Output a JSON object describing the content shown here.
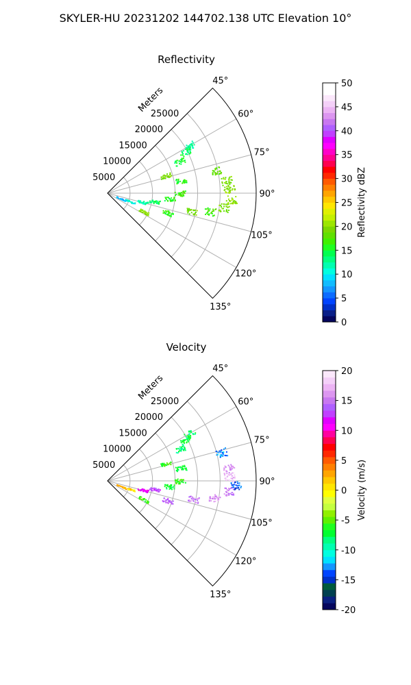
{
  "suptitle": "SKYLER-HU  20231202  144702.138 UTC Elevation 10°",
  "chart_data": [
    {
      "type": "heatmap",
      "title": "Reflectivity",
      "radial_axis_label": "Meters",
      "radial_ticks": [
        5000,
        10000,
        15000,
        20000,
        25000
      ],
      "rlim": [
        0,
        33000
      ],
      "theta_ticks_deg": [
        45,
        60,
        75,
        90,
        105,
        120,
        135
      ],
      "theta_range_deg": [
        45,
        135
      ],
      "grid": true,
      "colorbar": {
        "label": "Reflectivity dBZ",
        "range": [
          0,
          50
        ],
        "ticks": [
          0,
          5,
          10,
          15,
          20,
          25,
          30,
          35,
          40,
          45,
          50
        ],
        "colors": [
          "#05065d",
          "#0a1f88",
          "#0030c8",
          "#0044ff",
          "#0c6cff",
          "#1496ff",
          "#12bcff",
          "#00e1ff",
          "#00ffe0",
          "#00ffb0",
          "#00ff80",
          "#00ff50",
          "#20ff20",
          "#40f000",
          "#60e000",
          "#7cd800",
          "#9ce600",
          "#c4f000",
          "#e0f000",
          "#ffe600",
          "#ffc800",
          "#ffa500",
          "#ff8000",
          "#ff5a00",
          "#ff2800",
          "#ff0000",
          "#ff0050",
          "#ff0090",
          "#ff00c8",
          "#ff00ff",
          "#e000ff",
          "#c040ff",
          "#b060ff",
          "#c878f0",
          "#dc96f0",
          "#ecb4f4",
          "#f4d0f8",
          "#fbe8fb",
          "#ffffff",
          "#ffffff"
        ],
        "legend_placement": "right"
      },
      "echo_clusters": [
        {
          "az": 60,
          "range_m": 21000,
          "value": 12
        },
        {
          "az": 62,
          "range_m": 19500,
          "value": 14
        },
        {
          "az": 66,
          "range_m": 17500,
          "value": 15
        },
        {
          "az": 73,
          "range_m": 13500,
          "value": 19
        },
        {
          "az": 80,
          "range_m": 16500,
          "value": 16
        },
        {
          "az": 90,
          "range_m": 16000,
          "value": 17
        },
        {
          "az": 95,
          "range_m": 13800,
          "value": 16
        },
        {
          "az": 100,
          "range_m": 10500,
          "value": 14
        },
        {
          "az": 104,
          "range_m": 8000,
          "value": 12
        },
        {
          "az": 110,
          "range_m": 5200,
          "value": 11
        },
        {
          "az": 112,
          "range_m": 3200,
          "value": 8
        },
        {
          "az": 117,
          "range_m": 9000,
          "value": 20
        },
        {
          "az": 84,
          "range_m": 26500,
          "value": 19
        },
        {
          "az": 88,
          "range_m": 27000,
          "value": 20
        },
        {
          "az": 93,
          "range_m": 27500,
          "value": 20
        },
        {
          "az": 97,
          "range_m": 26000,
          "value": 19
        },
        {
          "az": 100,
          "range_m": 23000,
          "value": 17
        },
        {
          "az": 102,
          "range_m": 19000,
          "value": 19
        },
        {
          "az": 108,
          "range_m": 14000,
          "value": 16
        },
        {
          "az": 78,
          "range_m": 24500,
          "value": 18
        }
      ]
    },
    {
      "type": "heatmap",
      "title": "Velocity",
      "radial_axis_label": "Meters",
      "radial_ticks": [
        5000,
        10000,
        15000,
        20000,
        25000
      ],
      "rlim": [
        0,
        33000
      ],
      "theta_ticks_deg": [
        45,
        60,
        75,
        90,
        105,
        120,
        135
      ],
      "theta_range_deg": [
        45,
        135
      ],
      "grid": true,
      "colorbar": {
        "label": "Velocity (m/s)",
        "range": [
          -20,
          20
        ],
        "ticks": [
          -20,
          -15,
          -10,
          -5,
          0,
          5,
          10,
          15,
          20
        ],
        "colors": [
          "#05065d",
          "#0a2080",
          "#004050",
          "#005a3c",
          "#0030c8",
          "#0044ff",
          "#1496ff",
          "#00e1ff",
          "#00ffe0",
          "#00ffb0",
          "#00ff80",
          "#00ff30",
          "#20ff20",
          "#60f000",
          "#90f000",
          "#c4ff40",
          "#e0ff40",
          "#ffff00",
          "#ffe600",
          "#ffc800",
          "#ffa500",
          "#ff8000",
          "#ff5a00",
          "#ff2800",
          "#ff0000",
          "#ff0050",
          "#ff00a0",
          "#ff00ff",
          "#e000ff",
          "#c040ff",
          "#b060ff",
          "#c878f0",
          "#dc96f0",
          "#ecb4f4",
          "#f4d0f8",
          "#fbe8fb"
        ],
        "legend_placement": "right"
      },
      "echo_clusters": [
        {
          "az": 60,
          "range_m": 21000,
          "value": -8
        },
        {
          "az": 62,
          "range_m": 19500,
          "value": -7
        },
        {
          "az": 66,
          "range_m": 17500,
          "value": -8
        },
        {
          "az": 73,
          "range_m": 13500,
          "value": -6
        },
        {
          "az": 80,
          "range_m": 16500,
          "value": -7
        },
        {
          "az": 90,
          "range_m": 16000,
          "value": -6
        },
        {
          "az": 95,
          "range_m": 13800,
          "value": -7
        },
        {
          "az": 100,
          "range_m": 10500,
          "value": 13
        },
        {
          "az": 104,
          "range_m": 8000,
          "value": 11
        },
        {
          "az": 110,
          "range_m": 5200,
          "value": 1
        },
        {
          "az": 112,
          "range_m": 3200,
          "value": 3
        },
        {
          "az": 117,
          "range_m": 9000,
          "value": -6
        },
        {
          "az": 76,
          "range_m": 26000,
          "value": -13
        },
        {
          "az": 84,
          "range_m": 27000,
          "value": 16
        },
        {
          "az": 88,
          "range_m": 27000,
          "value": 17
        },
        {
          "az": 92,
          "range_m": 28500,
          "value": -14
        },
        {
          "az": 95,
          "range_m": 27000,
          "value": 15
        },
        {
          "az": 99,
          "range_m": 24000,
          "value": 16
        },
        {
          "az": 102,
          "range_m": 19500,
          "value": 15
        },
        {
          "az": 108,
          "range_m": 14000,
          "value": 14
        }
      ]
    }
  ]
}
